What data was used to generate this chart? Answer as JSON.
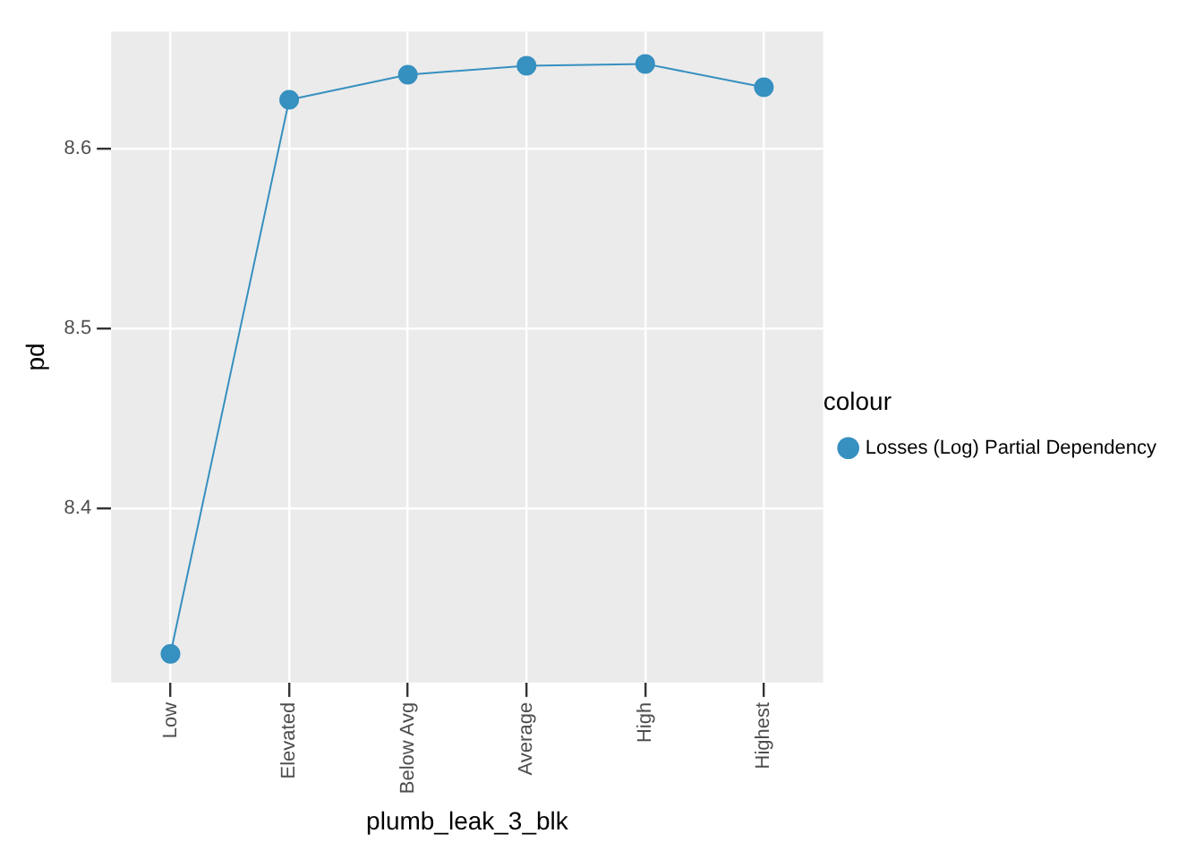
{
  "chart_data": {
    "type": "line",
    "xlabel": "plumb_leak_3_blk",
    "ylabel": "pd",
    "legend_title": "colour",
    "categories": [
      "Low",
      "Elevated",
      "Below Avg",
      "Average",
      "High",
      "Highest"
    ],
    "series": [
      {
        "name": "Losses (Log) Partial Dependency",
        "color": "#3690c0",
        "values": [
          8.319,
          8.627,
          8.641,
          8.646,
          8.647,
          8.634
        ]
      }
    ],
    "ylim": [
      8.303,
      8.665
    ],
    "yticks": [
      8.4,
      8.5,
      8.6
    ],
    "grid": true,
    "legend": "right",
    "marker": "circle"
  }
}
